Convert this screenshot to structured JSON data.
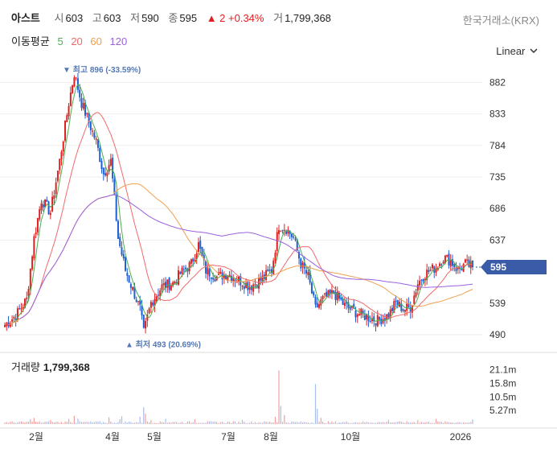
{
  "header": {
    "name": "아스트",
    "open_label": "시",
    "open": "603",
    "high_label": "고",
    "high": "603",
    "low_label": "저",
    "low": "590",
    "close_label": "종",
    "close": "595",
    "change": "▲ 2 +0.34%",
    "volume_label": "거",
    "volume": "1,799,368",
    "exchange": "한국거래소(KRX)"
  },
  "moving_average": {
    "label": "이동평균",
    "periods": [
      {
        "text": "5",
        "color": "#4caf50"
      },
      {
        "text": "20",
        "color": "#f06a6a"
      },
      {
        "text": "60",
        "color": "#f0a050"
      },
      {
        "text": "120",
        "color": "#9a60e0"
      }
    ]
  },
  "scale_selector": {
    "label": "Linear",
    "icon": "chevron-down-icon"
  },
  "colors": {
    "up": "#e02020",
    "down": "#1f5fd0",
    "grid": "#eeeeee",
    "current_price_tag": "#3a5ba8",
    "annotation": "#5578b5"
  },
  "chart_data": {
    "type": "candlestick",
    "price_axis": {
      "ticks": [
        882,
        833,
        784,
        735,
        686,
        637,
        539,
        490
      ],
      "range": [
        475,
        900
      ]
    },
    "current_price": "595",
    "x_axis_ticks": [
      "2월",
      "4월",
      "5월",
      "7월",
      "8월",
      "10월",
      "2026"
    ],
    "annotations": {
      "high": {
        "text": "최고 896 (-33.59%)",
        "value": 896
      },
      "low": {
        "text": "최저 493 (20.69%)",
        "value": 493
      }
    },
    "price_path": [
      [
        0,
        505
      ],
      [
        6,
        520
      ],
      [
        12,
        545
      ],
      [
        16,
        640
      ],
      [
        20,
        700
      ],
      [
        25,
        680
      ],
      [
        30,
        760
      ],
      [
        35,
        850
      ],
      [
        38,
        896
      ],
      [
        42,
        850
      ],
      [
        46,
        820
      ],
      [
        50,
        790
      ],
      [
        54,
        740
      ],
      [
        58,
        760
      ],
      [
        62,
        640
      ],
      [
        66,
        590
      ],
      [
        70,
        560
      ],
      [
        74,
        530
      ],
      [
        76,
        493
      ],
      [
        80,
        540
      ],
      [
        86,
        565
      ],
      [
        92,
        570
      ],
      [
        96,
        585
      ],
      [
        102,
        600
      ],
      [
        106,
        630
      ],
      [
        110,
        590
      ],
      [
        116,
        580
      ],
      [
        122,
        585
      ],
      [
        128,
        575
      ],
      [
        134,
        565
      ],
      [
        140,
        575
      ],
      [
        146,
        590
      ],
      [
        150,
        660
      ],
      [
        154,
        655
      ],
      [
        158,
        640
      ],
      [
        162,
        600
      ],
      [
        166,
        580
      ],
      [
        170,
        530
      ],
      [
        174,
        545
      ],
      [
        180,
        555
      ],
      [
        186,
        535
      ],
      [
        192,
        525
      ],
      [
        198,
        518
      ],
      [
        204,
        512
      ],
      [
        210,
        520
      ],
      [
        214,
        540
      ],
      [
        218,
        530
      ],
      [
        222,
        532
      ],
      [
        226,
        570
      ],
      [
        230,
        585
      ],
      [
        236,
        595
      ],
      [
        240,
        610
      ],
      [
        244,
        605
      ],
      [
        248,
        590
      ],
      [
        252,
        600
      ],
      [
        256,
        595
      ]
    ],
    "volume_axis": {
      "ticks": [
        "21.1m",
        "15.8m",
        "10.5m",
        "5.27m"
      ],
      "values_m": [
        21.1,
        15.8,
        10.5,
        5.27
      ],
      "max_m": 25
    },
    "volume_title": "거래량",
    "volume_value": "1,799,368",
    "volume_spikes": [
      [
        14,
        1.8
      ],
      [
        16,
        2.4
      ],
      [
        25,
        1.6
      ],
      [
        35,
        2.0
      ],
      [
        38,
        3.2
      ],
      [
        40,
        2.1
      ],
      [
        57,
        2.6
      ],
      [
        63,
        1.9
      ],
      [
        64,
        3.0
      ],
      [
        74,
        2.8
      ],
      [
        76,
        6.5
      ],
      [
        77,
        4.0
      ],
      [
        80,
        1.5
      ],
      [
        88,
        2.0
      ],
      [
        104,
        1.9
      ],
      [
        130,
        1.6
      ],
      [
        148,
        2.8
      ],
      [
        150,
        20.8
      ],
      [
        151,
        7.0
      ],
      [
        153,
        3.5
      ],
      [
        170,
        15.5
      ],
      [
        171,
        6.0
      ],
      [
        173,
        2.4
      ],
      [
        210,
        1.6
      ],
      [
        226,
        1.5
      ],
      [
        236,
        2.0
      ],
      [
        256,
        1.8
      ]
    ]
  }
}
